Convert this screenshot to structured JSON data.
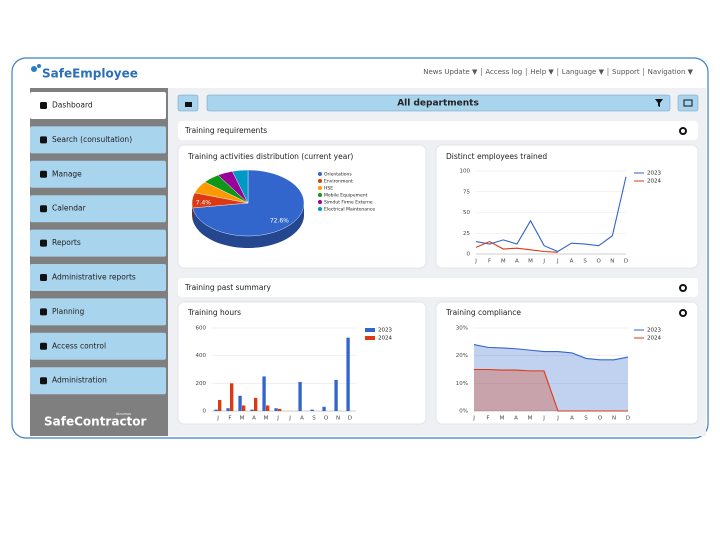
{
  "header": {
    "logo": "SafeEmployee",
    "nav": [
      "News Update ▼",
      "Access log",
      "Help ▼",
      "Language ▼",
      "Support",
      "Navigation ▼"
    ]
  },
  "sidebar": {
    "items": [
      "Dashboard",
      "Search (consultation)",
      "Manage",
      "Calendar",
      "Reports",
      "Administrative reports",
      "Planning",
      "Access control",
      "Administration"
    ],
    "footer_logo": "SafeContractor",
    "footer_tag": "Alcumus"
  },
  "toolbar": {
    "department": "All departments"
  },
  "sections": [
    "Training requirements",
    "Training past summary"
  ],
  "chart_data": [
    {
      "type": "pie",
      "title": "Training activities distribution (current year)",
      "categories": [
        "Orientations",
        "Environment",
        "HSE",
        "Mobile Equipement",
        "Simdut Firme Externe",
        "Electrical Maintenance"
      ],
      "values": [
        72.6,
        7.4,
        6,
        5,
        4.5,
        4.5
      ],
      "value_labels": [
        "72.6%",
        "7.4%",
        null,
        null,
        null,
        null
      ],
      "colors": [
        "#3366cc",
        "#dc3912",
        "#ff9900",
        "#109618",
        "#990099",
        "#0099c6"
      ]
    },
    {
      "type": "line",
      "title": "Distinct employees trained",
      "categories": [
        "J",
        "F",
        "M",
        "A",
        "M",
        "J",
        "J",
        "A",
        "S",
        "O",
        "N",
        "D"
      ],
      "series": [
        {
          "name": "2023",
          "color": "#3366cc",
          "values": [
            15,
            12,
            17,
            12,
            40,
            10,
            3,
            13,
            12,
            10,
            22,
            93
          ]
        },
        {
          "name": "2024",
          "color": "#dc3912",
          "values": [
            8,
            15,
            6,
            7,
            5,
            3,
            2,
            null,
            null,
            null,
            null,
            null
          ]
        }
      ],
      "ylim": [
        0,
        100
      ],
      "yticks": [
        0,
        25,
        50,
        75,
        100
      ],
      "grid": true
    },
    {
      "type": "bar",
      "title": "Training hours",
      "categories": [
        "J",
        "F",
        "M",
        "A",
        "M",
        "J",
        "J",
        "A",
        "S",
        "O",
        "N",
        "D"
      ],
      "series": [
        {
          "name": "2023",
          "color": "#3366cc",
          "values": [
            10,
            20,
            110,
            10,
            250,
            20,
            0,
            210,
            10,
            30,
            225,
            530
          ]
        },
        {
          "name": "2024",
          "color": "#dc3912",
          "values": [
            80,
            200,
            40,
            95,
            40,
            15,
            0,
            0,
            0,
            0,
            0,
            0
          ]
        }
      ],
      "ylim": [
        0,
        600
      ],
      "yticks": [
        0,
        200,
        400,
        600
      ],
      "grid": true
    },
    {
      "type": "area",
      "title": "Training compliance",
      "categories": [
        "J",
        "F",
        "M",
        "A",
        "M",
        "J",
        "J",
        "A",
        "S",
        "O",
        "N",
        "D"
      ],
      "series": [
        {
          "name": "2023",
          "color": "#3366cc",
          "values": [
            24,
            23,
            22.8,
            22.5,
            22,
            21.5,
            21.5,
            21,
            19,
            18.5,
            18.5,
            19.5
          ]
        },
        {
          "name": "2024",
          "color": "#dc3912",
          "values": [
            15,
            15,
            14.8,
            14.8,
            14.5,
            14.5,
            0,
            0,
            0,
            0,
            0,
            0
          ]
        }
      ],
      "ylim": [
        0,
        30
      ],
      "yticks": [
        {
          "value": 0,
          "label": "0%"
        },
        {
          "value": 10,
          "label": "10%"
        },
        {
          "value": 20,
          "label": "20%"
        },
        {
          "value": 30,
          "label": "30%"
        }
      ],
      "grid": true
    }
  ]
}
